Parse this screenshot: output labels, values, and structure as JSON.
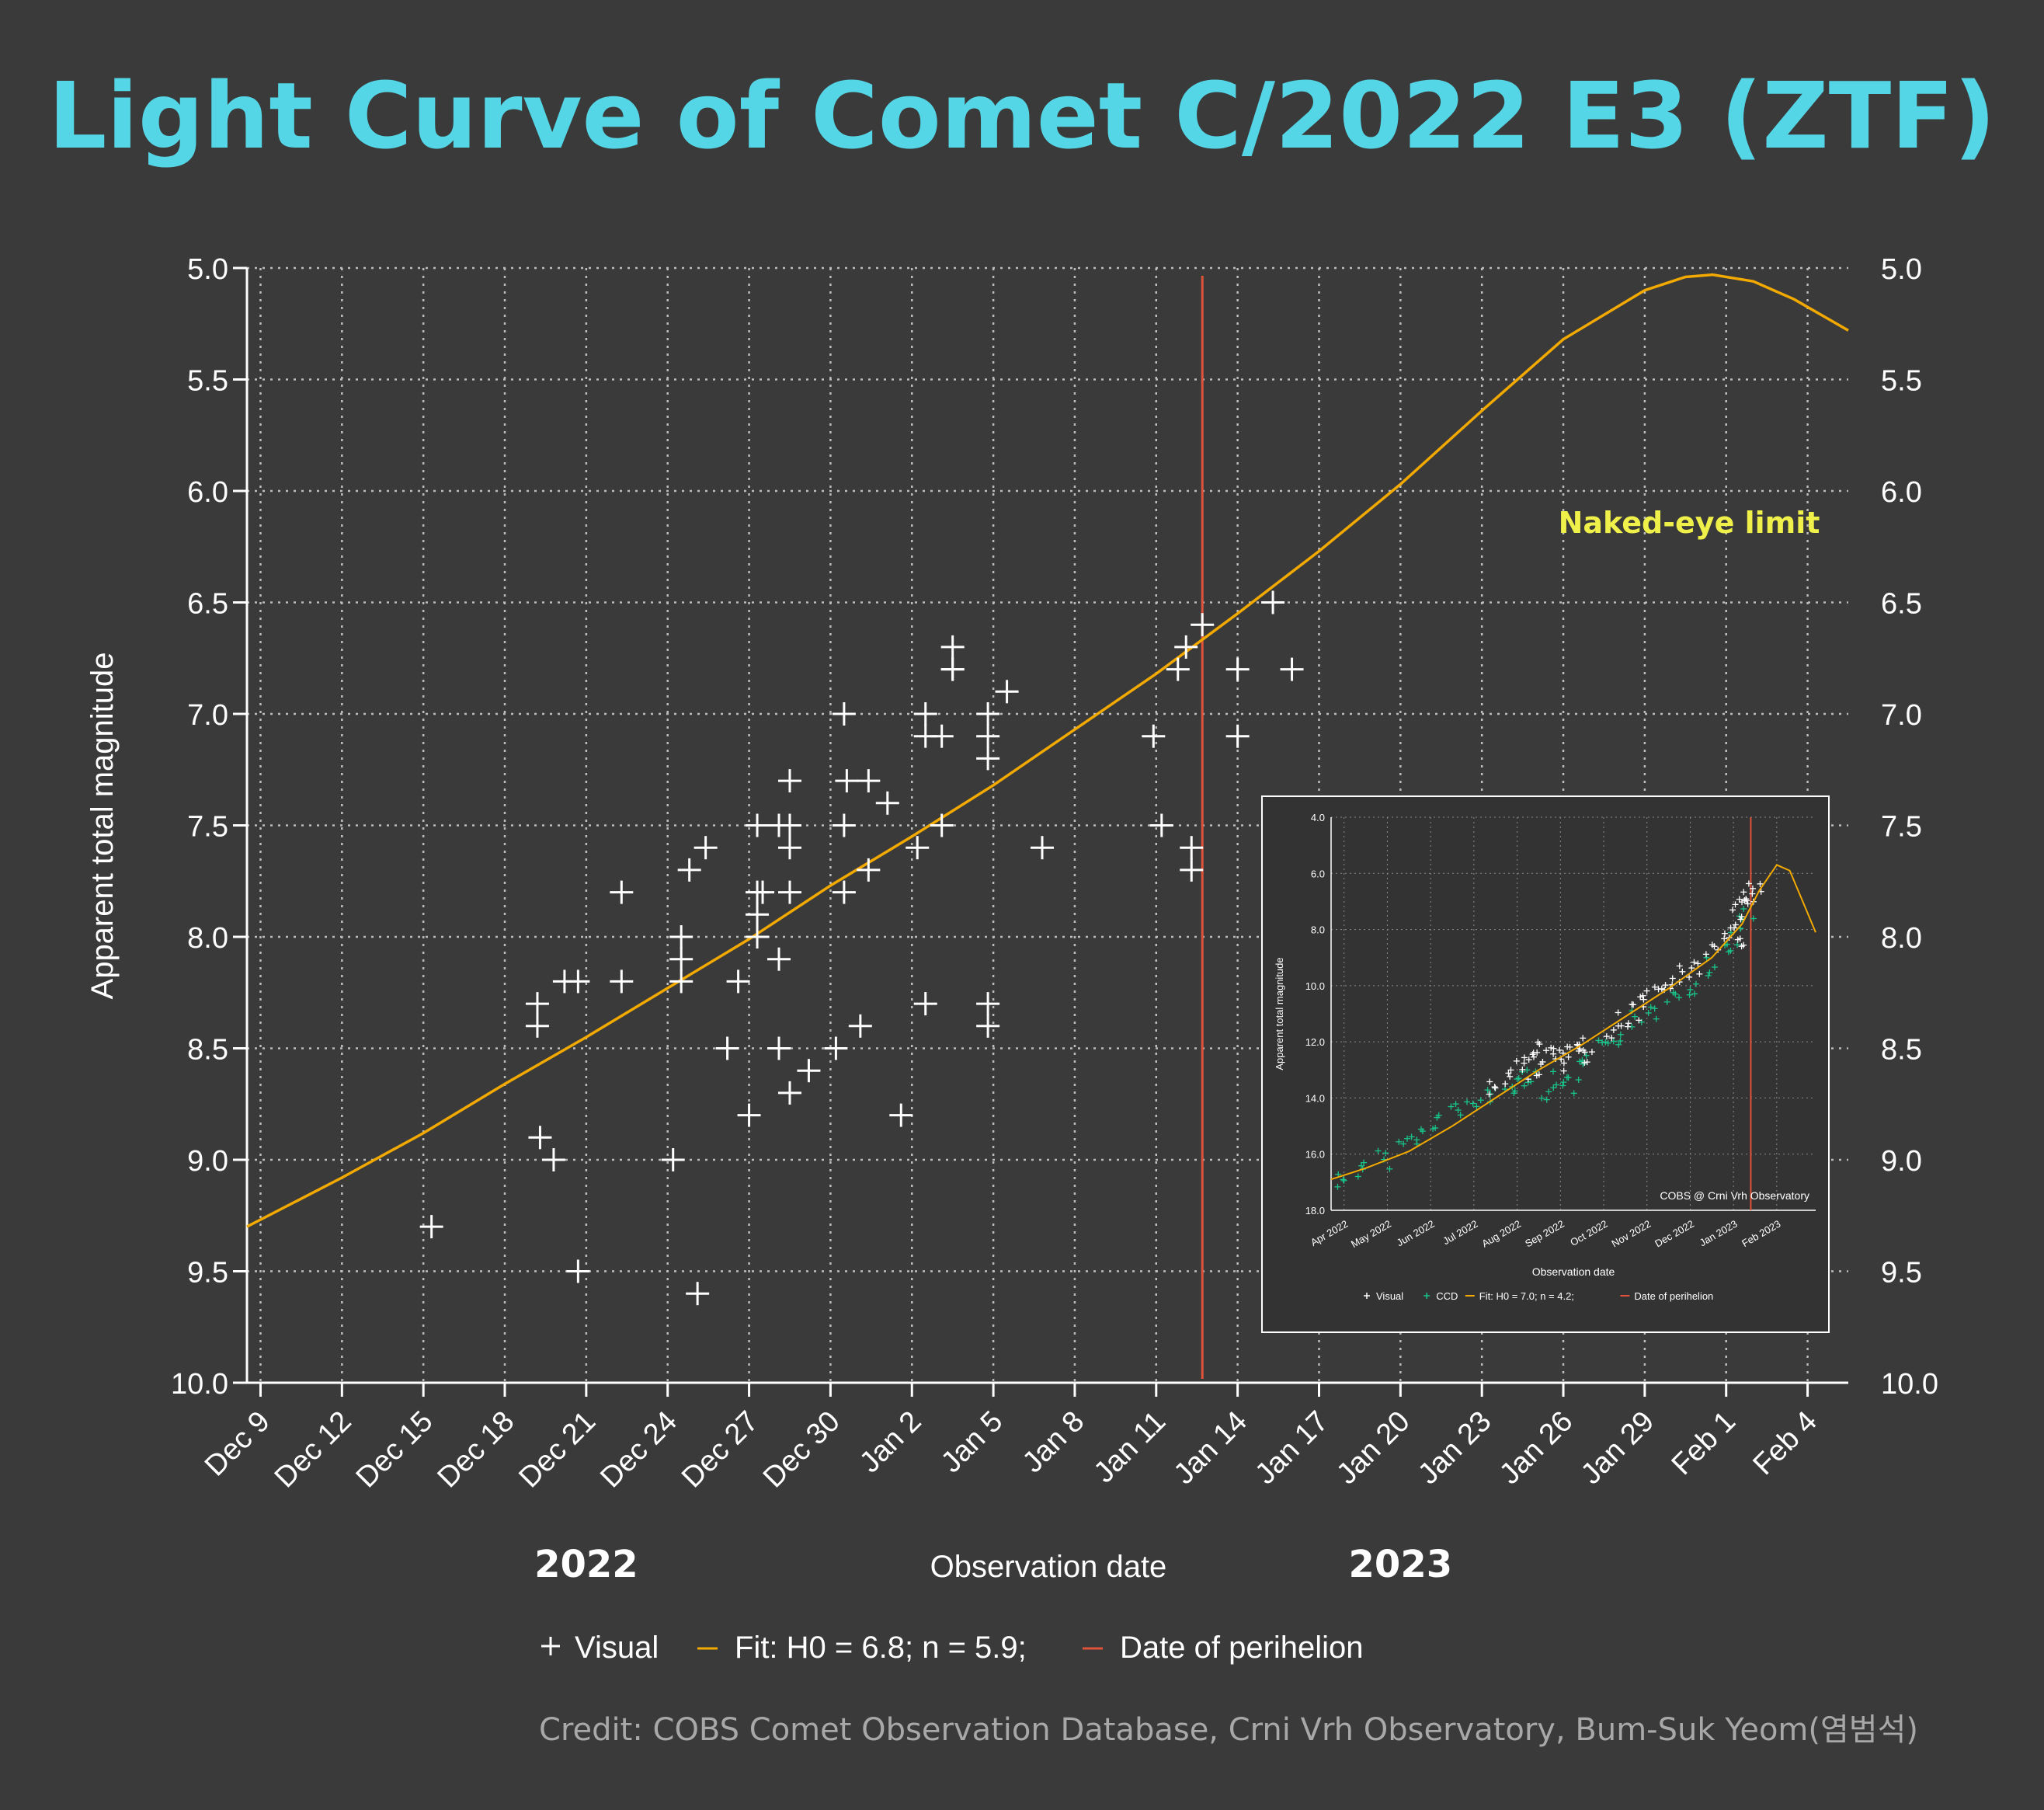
{
  "colors": {
    "background": "#3a3a3a",
    "title": "#55d6e6",
    "axis": "#ffffff",
    "grid": "#bdbdbd",
    "fit": "#f2a900",
    "perihelion": "#e0533a",
    "naked_eye": "#f0f04a",
    "credit": "#a8a8a8",
    "ccd": "#19c48a",
    "inset_bg": "#333333"
  },
  "chart_data": {
    "type": "scatter",
    "title": "Light Curve of Comet C/2022 E3 (ZTF)",
    "xlabel": "Observation date",
    "ylabel": "Apparent total magnitude",
    "y_inverted": true,
    "ylim": [
      5.0,
      10.0
    ],
    "yticks": [
      5.0,
      5.5,
      6.0,
      6.5,
      7.0,
      7.5,
      8.0,
      8.5,
      9.0,
      9.5,
      10.0
    ],
    "ytick_labels": [
      "5.0",
      "5.5",
      "6.0",
      "6.5",
      "7.0",
      "7.5",
      "8.0",
      "8.5",
      "9.0",
      "9.5",
      "10.0"
    ],
    "x_unit": "days since Dec 9, 2022",
    "xlim": [
      -0.5,
      58.5
    ],
    "xticks": [
      0,
      3,
      6,
      9,
      12,
      15,
      18,
      21,
      24,
      27,
      30,
      33,
      36,
      39,
      42,
      45,
      48,
      51,
      54,
      57
    ],
    "xtick_labels": [
      "Dec 9",
      "Dec 12",
      "Dec 15",
      "Dec 18",
      "Dec 21",
      "Dec 24",
      "Dec 27",
      "Dec 30",
      "Jan 2",
      "Jan 5",
      "Jan 8",
      "Jan 11",
      "Jan 14",
      "Jan 17",
      "Jan 20",
      "Jan 23",
      "Jan 26",
      "Jan 29",
      "Feb 1",
      "Feb 4"
    ],
    "year_labels": [
      {
        "x": 12,
        "text": "2022"
      },
      {
        "x": 42,
        "text": "2023"
      }
    ],
    "perihelion_x": 34.7,
    "annotation": {
      "text": "Naked-eye limit",
      "x": 53.5,
      "y": 6.15
    },
    "legend": {
      "placement": "bottom-center",
      "items": [
        {
          "symbol": "+",
          "label": "Visual"
        },
        {
          "symbol": "line",
          "label": "Fit: H0 = 6.8; n = 5.9;"
        },
        {
          "symbol": "vline",
          "label": "Date of perihelion"
        }
      ]
    },
    "series": [
      {
        "name": "Fit: H0 = 6.8; n = 5.9;",
        "kind": "line",
        "points": [
          [
            -0.5,
            9.3
          ],
          [
            3,
            9.08
          ],
          [
            6,
            8.88
          ],
          [
            9,
            8.66
          ],
          [
            12,
            8.45
          ],
          [
            15,
            8.23
          ],
          [
            18,
            8.01
          ],
          [
            21,
            7.77
          ],
          [
            24,
            7.55
          ],
          [
            27,
            7.32
          ],
          [
            30,
            7.07
          ],
          [
            33,
            6.82
          ],
          [
            36,
            6.55
          ],
          [
            39,
            6.27
          ],
          [
            42,
            5.97
          ],
          [
            45,
            5.64
          ],
          [
            48,
            5.32
          ],
          [
            51,
            5.1
          ],
          [
            52.5,
            5.04
          ],
          [
            53.5,
            5.03
          ],
          [
            55,
            5.06
          ],
          [
            56.5,
            5.14
          ],
          [
            58.5,
            5.28
          ]
        ]
      },
      {
        "name": "Visual",
        "kind": "scatter",
        "points": [
          [
            6.3,
            9.3
          ],
          [
            10.2,
            8.3
          ],
          [
            10.2,
            8.4
          ],
          [
            10.3,
            8.9
          ],
          [
            10.8,
            9.0
          ],
          [
            11.2,
            8.2
          ],
          [
            11.7,
            8.2
          ],
          [
            11.7,
            9.5
          ],
          [
            13.3,
            7.8
          ],
          [
            13.3,
            8.2
          ],
          [
            15.2,
            9.0
          ],
          [
            15.5,
            8.0
          ],
          [
            15.5,
            8.1
          ],
          [
            15.5,
            8.2
          ],
          [
            15.8,
            7.7
          ],
          [
            16.1,
            9.6
          ],
          [
            16.4,
            7.6
          ],
          [
            17.2,
            8.5
          ],
          [
            17.6,
            8.2
          ],
          [
            18.0,
            8.8
          ],
          [
            18.3,
            7.5
          ],
          [
            18.3,
            7.8
          ],
          [
            18.3,
            7.9
          ],
          [
            18.3,
            8.0
          ],
          [
            18.5,
            7.8
          ],
          [
            19.1,
            7.5
          ],
          [
            19.1,
            8.1
          ],
          [
            19.1,
            8.5
          ],
          [
            19.5,
            7.3
          ],
          [
            19.5,
            7.5
          ],
          [
            19.5,
            7.6
          ],
          [
            19.5,
            7.8
          ],
          [
            19.5,
            8.7
          ],
          [
            20.2,
            8.6
          ],
          [
            21.2,
            8.5
          ],
          [
            21.5,
            7.0
          ],
          [
            21.5,
            7.5
          ],
          [
            21.5,
            7.8
          ],
          [
            21.6,
            7.3
          ],
          [
            22.1,
            8.4
          ],
          [
            22.4,
            7.3
          ],
          [
            22.4,
            7.7
          ],
          [
            23.1,
            7.4
          ],
          [
            23.6,
            8.8
          ],
          [
            24.2,
            7.6
          ],
          [
            24.5,
            7.0
          ],
          [
            24.5,
            7.1
          ],
          [
            24.5,
            8.3
          ],
          [
            25.1,
            7.1
          ],
          [
            25.1,
            7.5
          ],
          [
            25.5,
            6.7
          ],
          [
            25.5,
            6.8
          ],
          [
            25.5,
            6.8
          ],
          [
            26.8,
            7.0
          ],
          [
            26.8,
            7.1
          ],
          [
            26.8,
            7.2
          ],
          [
            26.8,
            8.3
          ],
          [
            26.8,
            8.4
          ],
          [
            27.5,
            6.9
          ],
          [
            28.8,
            7.6
          ],
          [
            32.9,
            7.1
          ],
          [
            33.2,
            7.5
          ],
          [
            33.8,
            6.8
          ],
          [
            34.1,
            6.7
          ],
          [
            34.3,
            7.6
          ],
          [
            34.3,
            7.7
          ],
          [
            34.7,
            6.6
          ],
          [
            36.0,
            6.8
          ],
          [
            36.0,
            7.1
          ],
          [
            37.3,
            6.5
          ],
          [
            38.0,
            6.8
          ]
        ]
      }
    ],
    "inset": {
      "type": "scatter",
      "xlabel": "Observation date",
      "ylabel": "Apparent total magnitude",
      "ylim": [
        4.0,
        18.0
      ],
      "yticks": [
        4,
        6,
        8,
        10,
        12,
        14,
        16,
        18
      ],
      "ytick_labels": [
        "4.0",
        "6.0",
        "8.0",
        "10.0",
        "12.0",
        "14.0",
        "16.0",
        "18.0"
      ],
      "x_unit": "months since Apr 1, 2022",
      "xlim": [
        -0.3,
        10.9
      ],
      "xticks": [
        0,
        1,
        2,
        3,
        4,
        5,
        6,
        7,
        8,
        9,
        10
      ],
      "xtick_labels": [
        "Apr 2022",
        "May 2022",
        "Jun 2022",
        "Jul 2022",
        "Aug 2022",
        "Sep 2022",
        "Oct 2022",
        "Nov 2022",
        "Dec 2022",
        "Jan 2023",
        "Feb 2023"
      ],
      "perihelion_x": 9.4,
      "credit_text": "COBS @ Crni Vrh Observatory",
      "legend": [
        {
          "symbol": "+",
          "label": "Visual"
        },
        {
          "symbol": "+",
          "label": "CCD"
        },
        {
          "symbol": "line",
          "label": "Fit: H0 = 7.0; n = 4.2;"
        },
        {
          "symbol": "vline",
          "label": "Date of perihelion"
        }
      ],
      "fit": [
        [
          -0.3,
          16.9
        ],
        [
          0.5,
          16.5
        ],
        [
          1.5,
          15.9
        ],
        [
          2.5,
          15.0
        ],
        [
          3.5,
          14.0
        ],
        [
          4.5,
          13.0
        ],
        [
          5.5,
          12.1
        ],
        [
          6.5,
          11.1
        ],
        [
          7.5,
          10.1
        ],
        [
          8.5,
          9.0
        ],
        [
          9.2,
          7.8
        ],
        [
          9.6,
          6.6
        ],
        [
          10.0,
          5.7
        ],
        [
          10.3,
          5.9
        ],
        [
          10.6,
          7.0
        ],
        [
          10.9,
          8.1
        ]
      ],
      "visual": [
        [
          3.5,
          13.6
        ],
        [
          3.8,
          13.3
        ],
        [
          4.1,
          13.0
        ],
        [
          4.3,
          12.6
        ],
        [
          4.5,
          12.2
        ],
        [
          4.6,
          12.9
        ],
        [
          4.8,
          12.5
        ],
        [
          5.0,
          12.3
        ],
        [
          5.1,
          12.8
        ],
        [
          5.3,
          12.0
        ],
        [
          5.5,
          12.2
        ],
        [
          5.7,
          12.4
        ],
        [
          6.2,
          11.6
        ],
        [
          6.5,
          11.2
        ],
        [
          6.8,
          11.0
        ],
        [
          7.0,
          10.5
        ],
        [
          7.3,
          10.4
        ],
        [
          7.6,
          9.8
        ],
        [
          7.9,
          9.6
        ],
        [
          8.2,
          9.3
        ],
        [
          8.5,
          8.6
        ],
        [
          8.8,
          8.0
        ],
        [
          9.0,
          7.6
        ],
        [
          9.1,
          8.4
        ],
        [
          9.2,
          7.2
        ],
        [
          9.3,
          7.0
        ],
        [
          9.4,
          6.8
        ],
        [
          9.5,
          6.6
        ]
      ],
      "ccd": [
        [
          0.0,
          16.9
        ],
        [
          0.4,
          16.6
        ],
        [
          0.9,
          16.2
        ],
        [
          1.4,
          15.6
        ],
        [
          1.8,
          15.3
        ],
        [
          2.2,
          14.8
        ],
        [
          2.6,
          14.5
        ],
        [
          3.0,
          14.2
        ],
        [
          3.4,
          13.9
        ],
        [
          3.8,
          13.5
        ],
        [
          4.1,
          13.4
        ],
        [
          4.4,
          13.1
        ],
        [
          4.7,
          13.8
        ],
        [
          5.0,
          13.3
        ],
        [
          5.3,
          13.6
        ],
        [
          5.6,
          12.8
        ],
        [
          6.0,
          12.3
        ],
        [
          6.4,
          11.8
        ],
        [
          6.8,
          11.2
        ],
        [
          7.2,
          10.9
        ],
        [
          7.6,
          10.3
        ],
        [
          8.0,
          10.0
        ],
        [
          8.4,
          9.3
        ],
        [
          8.8,
          8.6
        ],
        [
          9.1,
          8.2
        ],
        [
          9.3,
          7.6
        ]
      ]
    }
  },
  "credit": "Credit: COBS Comet Observation Database, Crni Vrh Observatory, Bum-Suk Yeom(염범석)"
}
